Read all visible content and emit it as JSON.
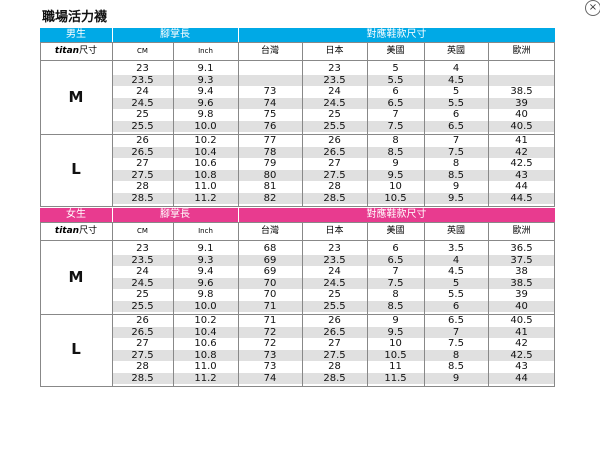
{
  "title": "職場活力襪",
  "close_glyph": "×",
  "colors": {
    "men_header": "#00a9e6",
    "women_header": "#e83b8f",
    "row_alt": "#e0e0e0"
  },
  "men": {
    "header": {
      "gender": "男生",
      "foot_length": "腳掌長",
      "shoe_size": "對應鞋款尺寸"
    },
    "subheader": {
      "titan": "titan",
      "titan_suffix": "尺寸",
      "cm": "CM",
      "inch": "Inch",
      "tw": "台灣",
      "jp": "日本",
      "us": "美國",
      "uk": "英國",
      "eu": "歐洲"
    },
    "groups": [
      {
        "size": "M",
        "rows": [
          {
            "cm": "23",
            "inch": "9.1",
            "tw": "",
            "jp": "23",
            "us": "5",
            "uk": "4",
            "eu": ""
          },
          {
            "cm": "23.5",
            "inch": "9.3",
            "tw": "",
            "jp": "23.5",
            "us": "5.5",
            "uk": "4.5",
            "eu": ""
          },
          {
            "cm": "24",
            "inch": "9.4",
            "tw": "73",
            "jp": "24",
            "us": "6",
            "uk": "5",
            "eu": "38.5"
          },
          {
            "cm": "24.5",
            "inch": "9.6",
            "tw": "74",
            "jp": "24.5",
            "us": "6.5",
            "uk": "5.5",
            "eu": "39"
          },
          {
            "cm": "25",
            "inch": "9.8",
            "tw": "75",
            "jp": "25",
            "us": "7",
            "uk": "6",
            "eu": "40"
          },
          {
            "cm": "25.5",
            "inch": "10.0",
            "tw": "76",
            "jp": "25.5",
            "us": "7.5",
            "uk": "6.5",
            "eu": "40.5"
          }
        ]
      },
      {
        "size": "L",
        "rows": [
          {
            "cm": "26",
            "inch": "10.2",
            "tw": "77",
            "jp": "26",
            "us": "8",
            "uk": "7",
            "eu": "41"
          },
          {
            "cm": "26.5",
            "inch": "10.4",
            "tw": "78",
            "jp": "26.5",
            "us": "8.5",
            "uk": "7.5",
            "eu": "42"
          },
          {
            "cm": "27",
            "inch": "10.6",
            "tw": "79",
            "jp": "27",
            "us": "9",
            "uk": "8",
            "eu": "42.5"
          },
          {
            "cm": "27.5",
            "inch": "10.8",
            "tw": "80",
            "jp": "27.5",
            "us": "9.5",
            "uk": "8.5",
            "eu": "43"
          },
          {
            "cm": "28",
            "inch": "11.0",
            "tw": "81",
            "jp": "28",
            "us": "10",
            "uk": "9",
            "eu": "44"
          },
          {
            "cm": "28.5",
            "inch": "11.2",
            "tw": "82",
            "jp": "28.5",
            "us": "10.5",
            "uk": "9.5",
            "eu": "44.5"
          }
        ]
      }
    ]
  },
  "women": {
    "header": {
      "gender": "女生",
      "foot_length": "腳掌長",
      "shoe_size": "對應鞋款尺寸"
    },
    "subheader": {
      "titan": "titan",
      "titan_suffix": "尺寸",
      "cm": "CM",
      "inch": "Inch",
      "tw": "台灣",
      "jp": "日本",
      "us": "美國",
      "uk": "英國",
      "eu": "歐洲"
    },
    "groups": [
      {
        "size": "M",
        "rows": [
          {
            "cm": "23",
            "inch": "9.1",
            "tw": "68",
            "jp": "23",
            "us": "6",
            "uk": "3.5",
            "eu": "36.5"
          },
          {
            "cm": "23.5",
            "inch": "9.3",
            "tw": "69",
            "jp": "23.5",
            "us": "6.5",
            "uk": "4",
            "eu": "37.5"
          },
          {
            "cm": "24",
            "inch": "9.4",
            "tw": "69",
            "jp": "24",
            "us": "7",
            "uk": "4.5",
            "eu": "38"
          },
          {
            "cm": "24.5",
            "inch": "9.6",
            "tw": "70",
            "jp": "24.5",
            "us": "7.5",
            "uk": "5",
            "eu": "38.5"
          },
          {
            "cm": "25",
            "inch": "9.8",
            "tw": "70",
            "jp": "25",
            "us": "8",
            "uk": "5.5",
            "eu": "39"
          },
          {
            "cm": "25.5",
            "inch": "10.0",
            "tw": "71",
            "jp": "25.5",
            "us": "8.5",
            "uk": "6",
            "eu": "40"
          }
        ]
      },
      {
        "size": "L",
        "rows": [
          {
            "cm": "26",
            "inch": "10.2",
            "tw": "71",
            "jp": "26",
            "us": "9",
            "uk": "6.5",
            "eu": "40.5"
          },
          {
            "cm": "26.5",
            "inch": "10.4",
            "tw": "72",
            "jp": "26.5",
            "us": "9.5",
            "uk": "7",
            "eu": "41"
          },
          {
            "cm": "27",
            "inch": "10.6",
            "tw": "72",
            "jp": "27",
            "us": "10",
            "uk": "7.5",
            "eu": "42"
          },
          {
            "cm": "27.5",
            "inch": "10.8",
            "tw": "73",
            "jp": "27.5",
            "us": "10.5",
            "uk": "8",
            "eu": "42.5"
          },
          {
            "cm": "28",
            "inch": "11.0",
            "tw": "73",
            "jp": "28",
            "us": "11",
            "uk": "8.5",
            "eu": "43"
          },
          {
            "cm": "28.5",
            "inch": "11.2",
            "tw": "74",
            "jp": "28.5",
            "us": "11.5",
            "uk": "9",
            "eu": "44"
          }
        ]
      }
    ]
  }
}
